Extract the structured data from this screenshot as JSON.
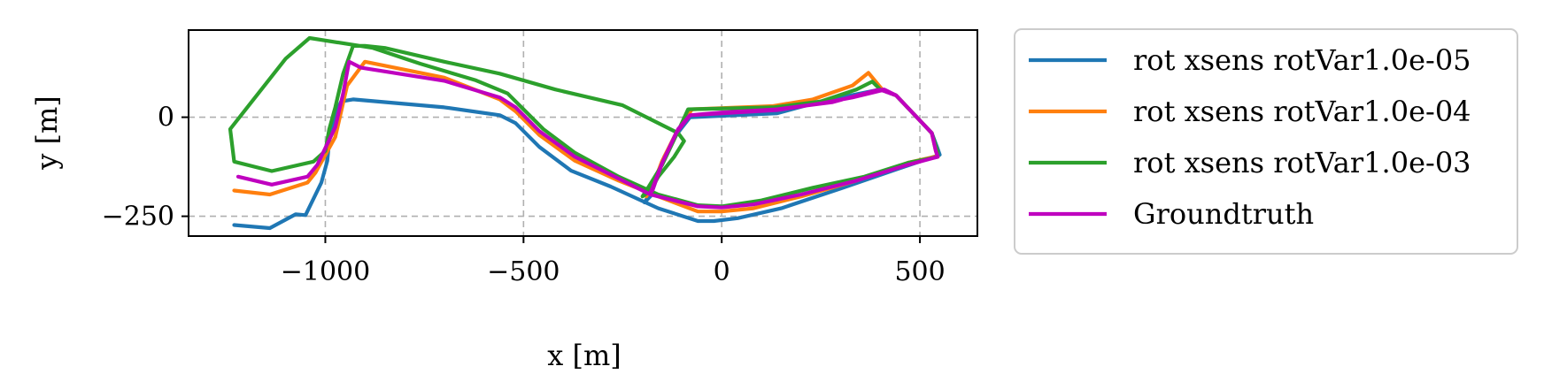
{
  "chart_data": {
    "type": "line",
    "title": "",
    "xlabel": "x [m]",
    "ylabel": "y [m]",
    "xlim": [
      -1345,
      645
    ],
    "ylim": [
      -300,
      220
    ],
    "xticks": [
      -1000,
      -500,
      0,
      500
    ],
    "xtick_labels": [
      "−1000",
      "−500",
      "0",
      "500"
    ],
    "yticks": [
      -250,
      0
    ],
    "ytick_labels": [
      "−250",
      "0"
    ],
    "grid": true,
    "legend_position": "outside-right",
    "series": [
      {
        "name": "rot xsens rotVar1.0e-05",
        "color": "#1f77b4",
        "points": [
          [
            -1230,
            -272
          ],
          [
            -1140,
            -280
          ],
          [
            -1075,
            -245
          ],
          [
            -1050,
            -247
          ],
          [
            -1010,
            -165
          ],
          [
            -995,
            -110
          ],
          [
            -990,
            -60
          ],
          [
            -975,
            10
          ],
          [
            -960,
            40
          ],
          [
            -930,
            45
          ],
          [
            -700,
            25
          ],
          [
            -560,
            5
          ],
          [
            -520,
            -15
          ],
          [
            -460,
            -75
          ],
          [
            -380,
            -135
          ],
          [
            -280,
            -175
          ],
          [
            -160,
            -230
          ],
          [
            -60,
            -262
          ],
          [
            -20,
            -262
          ],
          [
            40,
            -255
          ],
          [
            150,
            -230
          ],
          [
            300,
            -180
          ],
          [
            460,
            -125
          ],
          [
            550,
            -95
          ],
          [
            545,
            -80
          ],
          [
            530,
            -40
          ],
          [
            440,
            55
          ],
          [
            400,
            70
          ],
          [
            250,
            40
          ],
          [
            140,
            10
          ],
          [
            -80,
            0
          ],
          [
            -115,
            -45
          ],
          [
            -145,
            -100
          ],
          [
            -175,
            -185
          ],
          [
            -195,
            -215
          ],
          [
            -180,
            -200
          ]
        ]
      },
      {
        "name": "rot xsens rotVar1.0e-04",
        "color": "#ff7f0e",
        "points": [
          [
            -1230,
            -185
          ],
          [
            -1140,
            -195
          ],
          [
            -1045,
            -165
          ],
          [
            -1025,
            -140
          ],
          [
            -975,
            -50
          ],
          [
            -945,
            80
          ],
          [
            -900,
            140
          ],
          [
            -700,
            100
          ],
          [
            -560,
            45
          ],
          [
            -520,
            15
          ],
          [
            -460,
            -45
          ],
          [
            -370,
            -110
          ],
          [
            -260,
            -160
          ],
          [
            -160,
            -200
          ],
          [
            -60,
            -238
          ],
          [
            0,
            -238
          ],
          [
            80,
            -230
          ],
          [
            200,
            -200
          ],
          [
            340,
            -160
          ],
          [
            470,
            -115
          ],
          [
            545,
            -98
          ],
          [
            540,
            -85
          ],
          [
            530,
            -40
          ],
          [
            440,
            55
          ],
          [
            405,
            70
          ],
          [
            370,
            112
          ],
          [
            330,
            80
          ],
          [
            230,
            45
          ],
          [
            130,
            28
          ],
          [
            -75,
            20
          ],
          [
            -115,
            -40
          ],
          [
            -150,
            -110
          ],
          [
            -175,
            -175
          ],
          [
            -190,
            -200
          ]
        ]
      },
      {
        "name": "rot xsens rotVar1.0e-03",
        "color": "#2ca02c",
        "points": [
          [
            -1240,
            -30
          ],
          [
            -1100,
            148
          ],
          [
            -1040,
            200
          ],
          [
            -880,
            175
          ],
          [
            -760,
            135
          ],
          [
            -620,
            93
          ],
          [
            -540,
            60
          ],
          [
            -500,
            20
          ],
          [
            -450,
            -30
          ],
          [
            -370,
            -90
          ],
          [
            -260,
            -150
          ],
          [
            -160,
            -195
          ],
          [
            -60,
            -222
          ],
          [
            0,
            -225
          ],
          [
            100,
            -210
          ],
          [
            230,
            -178
          ],
          [
            360,
            -150
          ],
          [
            470,
            -115
          ],
          [
            545,
            -100
          ],
          [
            545,
            -88
          ],
          [
            530,
            -40
          ],
          [
            440,
            55
          ],
          [
            400,
            70
          ],
          [
            380,
            90
          ],
          [
            340,
            70
          ],
          [
            250,
            40
          ],
          [
            130,
            25
          ],
          [
            -85,
            20
          ],
          [
            -110,
            -35
          ],
          [
            -150,
            -120
          ],
          [
            -190,
            -185
          ],
          [
            -200,
            -200
          ],
          [
            -180,
            -185
          ],
          [
            -160,
            -150
          ],
          [
            -120,
            -100
          ],
          [
            -95,
            -60
          ],
          [
            -110,
            -40
          ],
          [
            -250,
            30
          ],
          [
            -420,
            70
          ],
          [
            -560,
            110
          ],
          [
            -700,
            140
          ],
          [
            -850,
            175
          ],
          [
            -900,
            180
          ],
          [
            -930,
            180
          ],
          [
            -955,
            110
          ],
          [
            -975,
            25
          ],
          [
            -990,
            -30
          ],
          [
            -1000,
            -85
          ],
          [
            -1030,
            -112
          ],
          [
            -1135,
            -136
          ],
          [
            -1230,
            -112
          ],
          [
            -1240,
            -30
          ]
        ]
      },
      {
        "name": "Groundtruth",
        "color": "#bf00bf",
        "points": [
          [
            -1220,
            -150
          ],
          [
            -1135,
            -170
          ],
          [
            -1045,
            -150
          ],
          [
            -1020,
            -120
          ],
          [
            -975,
            -25
          ],
          [
            -955,
            60
          ],
          [
            -940,
            140
          ],
          [
            -910,
            125
          ],
          [
            -700,
            92
          ],
          [
            -560,
            50
          ],
          [
            -520,
            25
          ],
          [
            -460,
            -35
          ],
          [
            -370,
            -100
          ],
          [
            -270,
            -150
          ],
          [
            -180,
            -195
          ],
          [
            -60,
            -225
          ],
          [
            0,
            -228
          ],
          [
            80,
            -220
          ],
          [
            200,
            -195
          ],
          [
            340,
            -160
          ],
          [
            470,
            -120
          ],
          [
            545,
            -100
          ],
          [
            540,
            -85
          ],
          [
            530,
            -40
          ],
          [
            440,
            55
          ],
          [
            405,
            68
          ],
          [
            330,
            50
          ],
          [
            250,
            35
          ],
          [
            140,
            18
          ],
          [
            0,
            10
          ],
          [
            -80,
            5
          ],
          [
            -115,
            -40
          ],
          [
            -150,
            -115
          ],
          [
            -175,
            -180
          ],
          [
            -180,
            -190
          ],
          [
            -175,
            -185
          ],
          [
            -150,
            -115
          ],
          [
            -110,
            -30
          ],
          [
            -80,
            5
          ],
          [
            0,
            12
          ],
          [
            140,
            20
          ],
          [
            280,
            38
          ],
          [
            390,
            68
          ],
          [
            410,
            70
          ],
          [
            440,
            55
          ]
        ]
      }
    ]
  }
}
